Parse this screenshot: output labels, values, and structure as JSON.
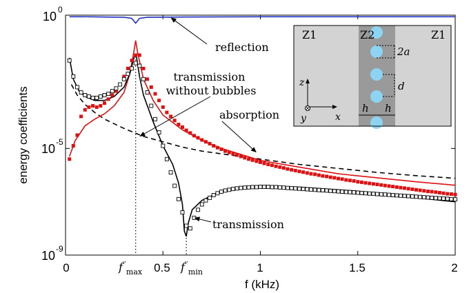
{
  "chart_data": {
    "type": "line",
    "xlabel": "f (kHz)",
    "ylabel": "energy coefficients",
    "xlim": [
      0,
      2
    ],
    "ylim_exponent": [
      -9,
      0
    ],
    "yscale": "log",
    "grid": false,
    "x_ticks": [
      "0",
      "0.5",
      "1",
      "1.5",
      "2"
    ],
    "y_ticks": [
      {
        "base": "10",
        "exp": "0"
      },
      {
        "base": "10",
        "exp": "-5"
      },
      {
        "base": "10",
        "exp": "-9"
      }
    ],
    "markers": [
      {
        "base": "f",
        "prime": "′′",
        "sub": "max",
        "x": 0.36
      },
      {
        "base": "f",
        "prime": "′′",
        "sub": "min",
        "x": 0.62
      }
    ],
    "series": [
      {
        "color": "#1f2fbf",
        "style": "solid",
        "kind": "line",
        "points": [
          [
            0.02,
            -0.06
          ],
          [
            0.1,
            -0.06
          ],
          [
            0.2,
            -0.07
          ],
          [
            0.3,
            -0.08
          ],
          [
            0.34,
            -0.12
          ],
          [
            0.36,
            -0.3
          ],
          [
            0.38,
            -0.12
          ],
          [
            0.42,
            -0.08
          ],
          [
            0.6,
            -0.07
          ],
          [
            1.0,
            -0.06
          ],
          [
            1.5,
            -0.06
          ],
          [
            2.0,
            -0.06
          ]
        ]
      },
      {
        "color": "#000000",
        "style": "dashed",
        "kind": "line",
        "points": [
          [
            0.03,
            -2.6
          ],
          [
            0.06,
            -3.0
          ],
          [
            0.1,
            -3.35
          ],
          [
            0.15,
            -3.65
          ],
          [
            0.2,
            -3.9
          ],
          [
            0.3,
            -4.25
          ],
          [
            0.4,
            -4.55
          ],
          [
            0.5,
            -4.75
          ],
          [
            0.6,
            -4.95
          ],
          [
            0.7,
            -5.1
          ],
          [
            0.8,
            -5.2
          ],
          [
            1.0,
            -5.4
          ],
          [
            1.2,
            -5.6
          ],
          [
            1.4,
            -5.75
          ],
          [
            1.6,
            -5.9
          ],
          [
            1.8,
            -6.02
          ],
          [
            2.0,
            -6.12
          ]
        ]
      },
      {
        "color": "#dd1111",
        "style": "solid",
        "kind": "line",
        "points": [
          [
            0.02,
            -5.3
          ],
          [
            0.05,
            -4.7
          ],
          [
            0.1,
            -4.15
          ],
          [
            0.15,
            -3.9
          ],
          [
            0.2,
            -3.7
          ],
          [
            0.25,
            -3.4
          ],
          [
            0.3,
            -2.9
          ],
          [
            0.33,
            -2.2
          ],
          [
            0.35,
            -1.4
          ],
          [
            0.36,
            -0.95
          ],
          [
            0.37,
            -1.4
          ],
          [
            0.4,
            -2.4
          ],
          [
            0.45,
            -3.2
          ],
          [
            0.5,
            -3.75
          ],
          [
            0.6,
            -4.3
          ],
          [
            0.7,
            -4.7
          ],
          [
            0.8,
            -5.0
          ],
          [
            1.0,
            -5.45
          ],
          [
            1.2,
            -5.7
          ],
          [
            1.4,
            -5.95
          ],
          [
            1.6,
            -6.1
          ],
          [
            1.8,
            -6.25
          ],
          [
            2.0,
            -6.38
          ]
        ]
      },
      {
        "color": "#000000",
        "style": "solid",
        "kind": "line",
        "points": [
          [
            0.02,
            -1.6
          ],
          [
            0.04,
            -2.4
          ],
          [
            0.07,
            -2.85
          ],
          [
            0.1,
            -3.05
          ],
          [
            0.15,
            -3.2
          ],
          [
            0.2,
            -3.2
          ],
          [
            0.25,
            -3.05
          ],
          [
            0.3,
            -2.7
          ],
          [
            0.33,
            -2.2
          ],
          [
            0.355,
            -1.5
          ],
          [
            0.365,
            -1.6
          ],
          [
            0.38,
            -2.3
          ],
          [
            0.4,
            -3.0
          ],
          [
            0.45,
            -4.0
          ],
          [
            0.5,
            -4.9
          ],
          [
            0.55,
            -5.6
          ],
          [
            0.58,
            -6.3
          ],
          [
            0.6,
            -7.1
          ],
          [
            0.61,
            -8.1
          ],
          [
            0.62,
            -8.3
          ],
          [
            0.63,
            -7.8
          ],
          [
            0.65,
            -7.3
          ],
          [
            0.7,
            -6.95
          ],
          [
            0.8,
            -6.6
          ],
          [
            0.9,
            -6.45
          ],
          [
            1.0,
            -6.4
          ],
          [
            1.2,
            -6.45
          ],
          [
            1.5,
            -6.6
          ],
          [
            1.8,
            -6.85
          ],
          [
            2.0,
            -7.0
          ]
        ]
      },
      {
        "color": "#dd1111",
        "style": "none",
        "kind": "filled-square",
        "marker_size": 5,
        "points": [
          [
            0.02,
            -5.4
          ],
          [
            0.04,
            -4.9
          ],
          [
            0.06,
            -4.5
          ],
          [
            0.08,
            -3.8
          ],
          [
            0.1,
            -3.55
          ],
          [
            0.12,
            -3.45
          ],
          [
            0.14,
            -3.4
          ],
          [
            0.16,
            -3.45
          ],
          [
            0.18,
            -3.4
          ],
          [
            0.2,
            -3.3
          ],
          [
            0.22,
            -3.15
          ],
          [
            0.24,
            -3.0
          ],
          [
            0.26,
            -2.85
          ],
          [
            0.28,
            -2.6
          ],
          [
            0.3,
            -2.3
          ],
          [
            0.32,
            -2.0
          ],
          [
            0.34,
            -1.7
          ],
          [
            0.36,
            -1.5
          ],
          [
            0.38,
            -1.5
          ],
          [
            0.4,
            -2.0
          ],
          [
            0.42,
            -2.4
          ],
          [
            0.44,
            -2.7
          ],
          [
            0.46,
            -2.95
          ],
          [
            0.48,
            -3.2
          ],
          [
            0.5,
            -3.45
          ],
          [
            0.52,
            -3.65
          ],
          [
            0.54,
            -3.8
          ],
          [
            0.56,
            -3.95
          ],
          [
            0.58,
            -4.1
          ],
          [
            0.6,
            -4.2
          ],
          [
            0.62,
            -4.32
          ],
          [
            0.64,
            -4.42
          ],
          [
            0.66,
            -4.52
          ],
          [
            0.68,
            -4.6
          ],
          [
            0.7,
            -4.68
          ],
          [
            0.72,
            -4.75
          ],
          [
            0.74,
            -4.82
          ],
          [
            0.76,
            -4.9
          ],
          [
            0.78,
            -4.97
          ],
          [
            0.8,
            -5.03
          ],
          [
            0.82,
            -5.1
          ],
          [
            0.84,
            -5.15
          ],
          [
            0.86,
            -5.2
          ],
          [
            0.88,
            -5.25
          ],
          [
            0.9,
            -5.3
          ],
          [
            0.92,
            -5.35
          ],
          [
            0.94,
            -5.4
          ],
          [
            0.96,
            -5.44
          ],
          [
            0.98,
            -5.48
          ],
          [
            1.0,
            -5.52
          ],
          [
            1.02,
            -5.56
          ],
          [
            1.04,
            -5.6
          ],
          [
            1.06,
            -5.63
          ],
          [
            1.08,
            -5.67
          ],
          [
            1.1,
            -5.7
          ],
          [
            1.12,
            -5.73
          ],
          [
            1.14,
            -5.77
          ],
          [
            1.16,
            -5.8
          ],
          [
            1.18,
            -5.83
          ],
          [
            1.2,
            -5.86
          ],
          [
            1.22,
            -5.89
          ],
          [
            1.24,
            -5.92
          ],
          [
            1.26,
            -5.95
          ],
          [
            1.28,
            -5.97
          ],
          [
            1.3,
            -6.0
          ],
          [
            1.32,
            -6.03
          ],
          [
            1.34,
            -6.05
          ],
          [
            1.36,
            -6.08
          ],
          [
            1.38,
            -6.1
          ],
          [
            1.4,
            -6.13
          ],
          [
            1.42,
            -6.15
          ],
          [
            1.44,
            -6.18
          ],
          [
            1.46,
            -6.2
          ],
          [
            1.48,
            -6.22
          ],
          [
            1.5,
            -6.25
          ],
          [
            1.52,
            -6.27
          ],
          [
            1.54,
            -6.29
          ],
          [
            1.56,
            -6.31
          ],
          [
            1.58,
            -6.33
          ],
          [
            1.6,
            -6.35
          ],
          [
            1.62,
            -6.37
          ],
          [
            1.64,
            -6.39
          ],
          [
            1.66,
            -6.41
          ],
          [
            1.68,
            -6.43
          ],
          [
            1.7,
            -6.45
          ],
          [
            1.72,
            -6.47
          ],
          [
            1.74,
            -6.49
          ],
          [
            1.76,
            -6.51
          ],
          [
            1.78,
            -6.53
          ],
          [
            1.8,
            -6.55
          ],
          [
            1.82,
            -6.57
          ],
          [
            1.84,
            -6.59
          ],
          [
            1.86,
            -6.61
          ],
          [
            1.88,
            -6.62
          ],
          [
            1.9,
            -6.64
          ],
          [
            1.92,
            -6.66
          ],
          [
            1.94,
            -6.68
          ],
          [
            1.96,
            -6.7
          ],
          [
            1.98,
            -6.71
          ],
          [
            2.0,
            -6.73
          ]
        ]
      },
      {
        "color": "#000000",
        "style": "none",
        "kind": "open-square",
        "marker_size": 5,
        "points": [
          [
            0.02,
            -1.7
          ],
          [
            0.04,
            -2.3
          ],
          [
            0.06,
            -2.7
          ],
          [
            0.08,
            -2.9
          ],
          [
            0.1,
            -3.0
          ],
          [
            0.12,
            -3.05
          ],
          [
            0.14,
            -3.1
          ],
          [
            0.16,
            -3.1
          ],
          [
            0.18,
            -3.05
          ],
          [
            0.2,
            -3.0
          ],
          [
            0.22,
            -2.95
          ],
          [
            0.24,
            -2.85
          ],
          [
            0.26,
            -2.75
          ],
          [
            0.28,
            -2.6
          ],
          [
            0.3,
            -2.4
          ],
          [
            0.32,
            -2.2
          ],
          [
            0.34,
            -2.0
          ],
          [
            0.36,
            -1.8
          ],
          [
            0.38,
            -1.9
          ],
          [
            0.4,
            -2.4
          ],
          [
            0.42,
            -2.9
          ],
          [
            0.44,
            -3.4
          ],
          [
            0.46,
            -3.9
          ],
          [
            0.48,
            -4.4
          ],
          [
            0.5,
            -4.9
          ],
          [
            0.52,
            -5.4
          ],
          [
            0.54,
            -5.9
          ],
          [
            0.56,
            -6.4
          ],
          [
            0.58,
            -6.9
          ],
          [
            0.6,
            -7.4
          ],
          [
            0.62,
            -7.9
          ],
          [
            0.64,
            -8.0
          ],
          [
            0.66,
            -7.6
          ],
          [
            0.68,
            -7.3
          ],
          [
            0.7,
            -7.1
          ],
          [
            0.72,
            -6.95
          ],
          [
            0.74,
            -6.85
          ],
          [
            0.76,
            -6.75
          ],
          [
            0.78,
            -6.68
          ],
          [
            0.8,
            -6.62
          ],
          [
            0.82,
            -6.58
          ],
          [
            0.84,
            -6.55
          ],
          [
            0.86,
            -6.52
          ],
          [
            0.88,
            -6.5
          ],
          [
            0.9,
            -6.48
          ],
          [
            0.92,
            -6.47
          ],
          [
            0.94,
            -6.46
          ],
          [
            0.96,
            -6.45
          ],
          [
            0.98,
            -6.45
          ],
          [
            1.0,
            -6.44
          ],
          [
            1.02,
            -6.44
          ],
          [
            1.04,
            -6.44
          ],
          [
            1.06,
            -6.45
          ],
          [
            1.08,
            -6.45
          ],
          [
            1.1,
            -6.46
          ],
          [
            1.12,
            -6.47
          ],
          [
            1.14,
            -6.48
          ],
          [
            1.16,
            -6.49
          ],
          [
            1.18,
            -6.5
          ],
          [
            1.2,
            -6.51
          ],
          [
            1.22,
            -6.52
          ],
          [
            1.24,
            -6.53
          ],
          [
            1.26,
            -6.54
          ],
          [
            1.28,
            -6.55
          ],
          [
            1.3,
            -6.56
          ],
          [
            1.32,
            -6.57
          ],
          [
            1.34,
            -6.58
          ],
          [
            1.36,
            -6.59
          ],
          [
            1.38,
            -6.6
          ],
          [
            1.4,
            -6.61
          ],
          [
            1.42,
            -6.62
          ],
          [
            1.44,
            -6.63
          ],
          [
            1.46,
            -6.64
          ],
          [
            1.48,
            -6.65
          ],
          [
            1.5,
            -6.66
          ],
          [
            1.52,
            -6.67
          ],
          [
            1.54,
            -6.68
          ],
          [
            1.56,
            -6.69
          ],
          [
            1.58,
            -6.7
          ],
          [
            1.6,
            -6.71
          ],
          [
            1.62,
            -6.72
          ],
          [
            1.64,
            -6.73
          ],
          [
            1.66,
            -6.74
          ],
          [
            1.68,
            -6.75
          ],
          [
            1.7,
            -6.76
          ],
          [
            1.72,
            -6.77
          ],
          [
            1.74,
            -6.78
          ],
          [
            1.76,
            -6.79
          ],
          [
            1.78,
            -6.8
          ],
          [
            1.8,
            -6.81
          ],
          [
            1.82,
            -6.82
          ],
          [
            1.84,
            -6.83
          ],
          [
            1.86,
            -6.84
          ],
          [
            1.88,
            -6.85
          ],
          [
            1.9,
            -6.86
          ],
          [
            1.92,
            -6.87
          ],
          [
            1.94,
            -6.88
          ],
          [
            1.96,
            -6.89
          ],
          [
            1.98,
            -6.9
          ],
          [
            2.0,
            -6.91
          ]
        ]
      }
    ],
    "annotations": [
      {
        "text": "reflection",
        "arrow_to": [
          0.54,
          -0.09
        ]
      },
      {
        "text": "transmission\nwithout bubbles",
        "arrow_to": [
          0.38,
          -4.55
        ]
      },
      {
        "text": "absorption",
        "arrow_to": [
          0.98,
          -5.15
        ]
      },
      {
        "text": "transmission",
        "arrow_to": [
          0.66,
          -7.6
        ]
      }
    ],
    "inset": {
      "labels": [
        "Z1",
        "Z2",
        "Z1"
      ],
      "dim_labels": [
        "2a",
        "d",
        "h",
        "h"
      ],
      "axes_labels": [
        "z",
        "x",
        "y"
      ],
      "colors": {
        "outer": "#d3d3d3",
        "middle": "#9a9a9a",
        "bubble": "#8dd4f2"
      }
    }
  }
}
